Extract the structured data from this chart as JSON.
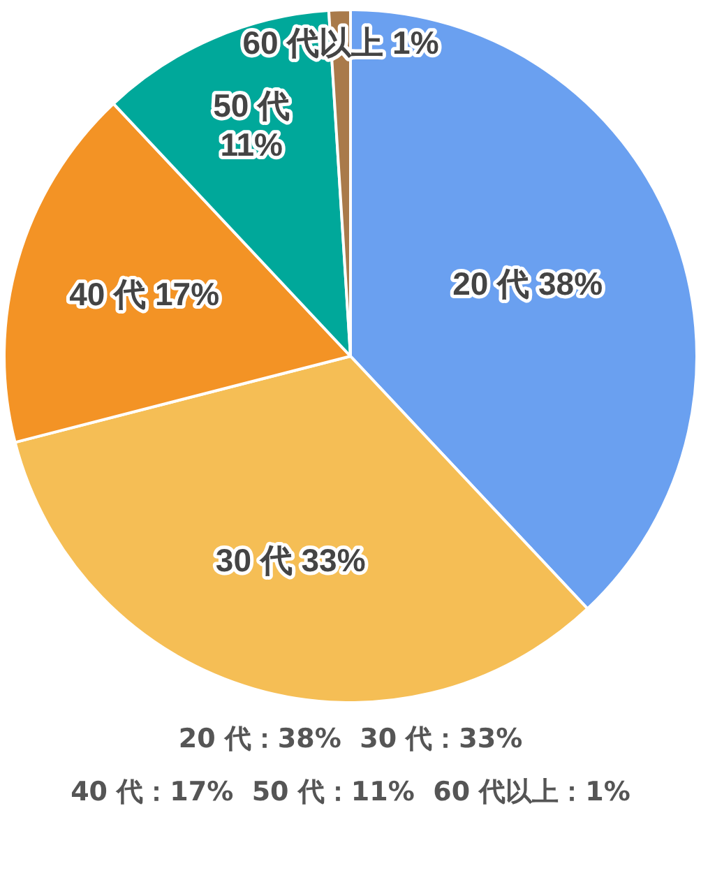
{
  "chart_data": {
    "type": "pie",
    "categories": [
      "20 代",
      "30 代",
      "40 代",
      "50 代",
      "60 代以上"
    ],
    "values": [
      38,
      33,
      17,
      11,
      1
    ],
    "colors": [
      "#6aa0f0",
      "#f5be55",
      "#f39325",
      "#00a89a",
      "#a97a4a"
    ],
    "value_labels": [
      "38%",
      "33%",
      "17%",
      "11%",
      "1%"
    ],
    "legend": false,
    "annotations": [
      "20 代：38%  30 代：33%",
      "40 代：17%  50 代：11%  60 代以上：1%"
    ]
  }
}
